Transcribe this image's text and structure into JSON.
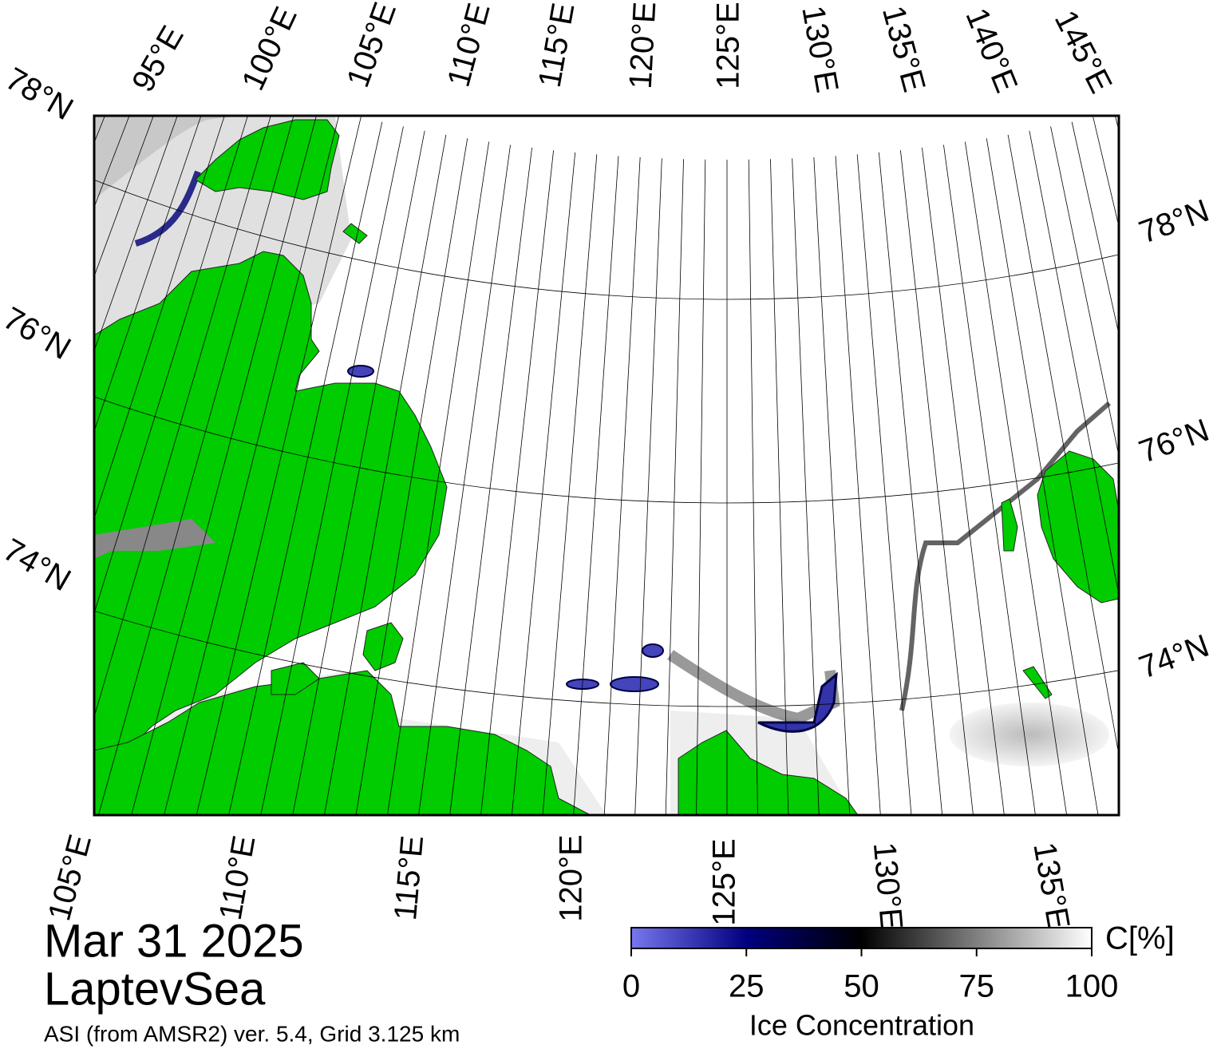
{
  "map": {
    "top_lon_labels": [
      "95°E",
      "100°E",
      "105°E",
      "110°E",
      "115°E",
      "120°E",
      "125°E",
      "130°E",
      "135°E",
      "140°E",
      "145°E"
    ],
    "left_lat_labels": [
      "78°N",
      "76°N",
      "74°N"
    ],
    "right_lat_labels": [
      "78°N",
      "76°N",
      "74°N"
    ],
    "bottom_lon_labels": [
      "105°E",
      "110°E",
      "115°E",
      "120°E",
      "125°E",
      "130°E",
      "135°E"
    ],
    "date": "Mar 31 2025",
    "region": "LaptevSea",
    "source": "ASI (from AMSR2) ver. 5.4,  Grid 3.125 km"
  },
  "colorbar": {
    "label": "Ice Concentration",
    "unit": "C[%]",
    "lim": [
      0,
      100
    ],
    "ticks": [
      0,
      25,
      50,
      75,
      100
    ]
  }
}
